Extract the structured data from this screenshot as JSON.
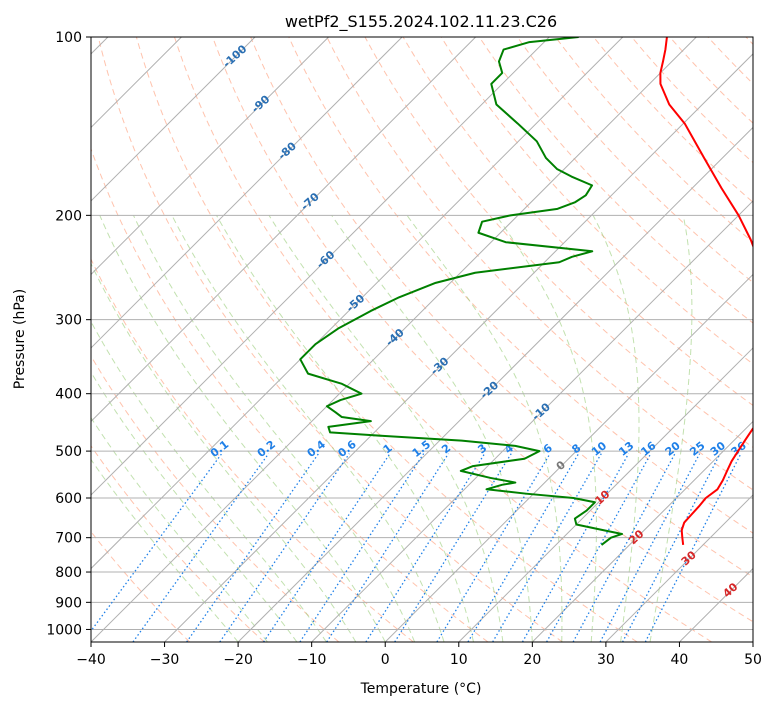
{
  "chart_data": {
    "type": "skew-t",
    "title": "wetPf2_S155.2024.102.11.23.C26",
    "xlabel": "Temperature (°C)",
    "ylabel": "Pressure (hPa)",
    "xlim": [
      -40,
      50
    ],
    "ylim": [
      1050,
      100
    ],
    "y_scale": "log",
    "x_ticks": [
      -40,
      -30,
      -20,
      -10,
      0,
      10,
      20,
      30,
      40,
      50
    ],
    "x_tick_labels": [
      "−40",
      "−30",
      "−20",
      "−10",
      "0",
      "10",
      "20",
      "30",
      "40",
      "50"
    ],
    "y_ticks": [
      100,
      200,
      300,
      400,
      500,
      600,
      700,
      800,
      900,
      1000
    ],
    "y_tick_labels": [
      "100",
      "200",
      "300",
      "400",
      "500",
      "600",
      "700",
      "800",
      "900",
      "1000"
    ],
    "grid": true,
    "series": [
      {
        "role": "temperature",
        "color": "#ff0000",
        "points": [
          {
            "p": 720,
            "t": 27.3
          },
          {
            "p": 700,
            "t": 26.2
          },
          {
            "p": 680,
            "t": 25.1
          },
          {
            "p": 660,
            "t": 24.4
          },
          {
            "p": 640,
            "t": 24.3
          },
          {
            "p": 620,
            "t": 24.2
          },
          {
            "p": 600,
            "t": 24.0
          },
          {
            "p": 580,
            "t": 24.4
          },
          {
            "p": 560,
            "t": 23.9
          },
          {
            "p": 540,
            "t": 23.2
          },
          {
            "p": 520,
            "t": 22.5
          },
          {
            "p": 500,
            "t": 22.0
          },
          {
            "p": 480,
            "t": 21.5
          },
          {
            "p": 460,
            "t": 21.0
          },
          {
            "p": 440,
            "t": 20.6
          },
          {
            "p": 420,
            "t": 20.3
          },
          {
            "p": 400,
            "t": 20.0
          },
          {
            "p": 380,
            "t": 19.2
          },
          {
            "p": 360,
            "t": 17.7
          },
          {
            "p": 340,
            "t": 15.3
          },
          {
            "p": 320,
            "t": 12.8
          },
          {
            "p": 300,
            "t": 10.0
          },
          {
            "p": 280,
            "t": 6.8
          },
          {
            "p": 260,
            "t": 3.0
          },
          {
            "p": 240,
            "t": -0.8
          },
          {
            "p": 220,
            "t": -5.0
          },
          {
            "p": 200,
            "t": -10.0
          },
          {
            "p": 180,
            "t": -16.0
          },
          {
            "p": 160,
            "t": -22.5
          },
          {
            "p": 140,
            "t": -29.8
          },
          {
            "p": 130,
            "t": -34.5
          },
          {
            "p": 120,
            "t": -38.5
          },
          {
            "p": 115,
            "t": -40.0
          },
          {
            "p": 110,
            "t": -41.2
          },
          {
            "p": 105,
            "t": -42.5
          },
          {
            "p": 100,
            "t": -44.0
          }
        ]
      },
      {
        "role": "dewpoint",
        "color": "#008000",
        "points": [
          {
            "p": 720,
            "t": 16.2
          },
          {
            "p": 700,
            "t": 16.5
          },
          {
            "p": 690,
            "t": 17.5
          },
          {
            "p": 680,
            "t": 14.5
          },
          {
            "p": 665,
            "t": 10.0
          },
          {
            "p": 650,
            "t": 9.0
          },
          {
            "p": 630,
            "t": 9.5
          },
          {
            "p": 610,
            "t": 9.5
          },
          {
            "p": 600,
            "t": 6.0
          },
          {
            "p": 590,
            "t": -1.0
          },
          {
            "p": 580,
            "t": -7.0
          },
          {
            "p": 570,
            "t": -5.5
          },
          {
            "p": 565,
            "t": -4.0
          },
          {
            "p": 555,
            "t": -8.0
          },
          {
            "p": 540,
            "t": -13.0
          },
          {
            "p": 530,
            "t": -12.0
          },
          {
            "p": 515,
            "t": -6.0
          },
          {
            "p": 500,
            "t": -5.0
          },
          {
            "p": 490,
            "t": -9.0
          },
          {
            "p": 480,
            "t": -17.0
          },
          {
            "p": 470,
            "t": -30.0
          },
          {
            "p": 465,
            "t": -36.0
          },
          {
            "p": 455,
            "t": -37.0
          },
          {
            "p": 445,
            "t": -32.0
          },
          {
            "p": 438,
            "t": -36.5
          },
          {
            "p": 430,
            "t": -38.0
          },
          {
            "p": 420,
            "t": -40.0
          },
          {
            "p": 410,
            "t": -39.0
          },
          {
            "p": 400,
            "t": -37.0
          },
          {
            "p": 385,
            "t": -41.0
          },
          {
            "p": 370,
            "t": -47.0
          },
          {
            "p": 350,
            "t": -50.0
          },
          {
            "p": 330,
            "t": -50.0
          },
          {
            "p": 310,
            "t": -49.0
          },
          {
            "p": 290,
            "t": -47.0
          },
          {
            "p": 275,
            "t": -45.0
          },
          {
            "p": 260,
            "t": -42.0
          },
          {
            "p": 250,
            "t": -38.0
          },
          {
            "p": 240,
            "t": -28.0
          },
          {
            "p": 235,
            "t": -27.0
          },
          {
            "p": 230,
            "t": -25.0
          },
          {
            "p": 222,
            "t": -38.0
          },
          {
            "p": 214,
            "t": -43.0
          },
          {
            "p": 205,
            "t": -44.0
          },
          {
            "p": 200,
            "t": -41.0
          },
          {
            "p": 195,
            "t": -35.5
          },
          {
            "p": 190,
            "t": -34.0
          },
          {
            "p": 185,
            "t": -33.5
          },
          {
            "p": 178,
            "t": -34.0
          },
          {
            "p": 172,
            "t": -38.0
          },
          {
            "p": 167,
            "t": -41.0
          },
          {
            "p": 160,
            "t": -44.0
          },
          {
            "p": 150,
            "t": -47.5
          },
          {
            "p": 140,
            "t": -52.5
          },
          {
            "p": 130,
            "t": -58.0
          },
          {
            "p": 120,
            "t": -61.5
          },
          {
            "p": 115,
            "t": -61.5
          },
          {
            "p": 110,
            "t": -63.5
          },
          {
            "p": 105,
            "t": -64.5
          },
          {
            "p": 102,
            "t": -62.0
          },
          {
            "p": 100,
            "t": -56.0
          }
        ]
      }
    ],
    "isotherm_labels": [
      "-100",
      "-90",
      "-80",
      "-70",
      "-60",
      "-50",
      "-40",
      "-30",
      "-20",
      "-10",
      "0",
      "10",
      "20",
      "30",
      "40"
    ],
    "mixing_ratio_labels": [
      "0.1",
      "0.2",
      "0.4",
      "0.6",
      "1",
      "1.5",
      "2",
      "3",
      "4",
      "6",
      "8",
      "10",
      "13",
      "16",
      "20",
      "25",
      "30",
      "36"
    ],
    "mixing_ratio_values": [
      0.1,
      0.2,
      0.4,
      0.6,
      1,
      1.5,
      2,
      3,
      4,
      6,
      8,
      10,
      13,
      16,
      20,
      25,
      30,
      36
    ],
    "colors": {
      "dry_adiabat": "#ff9b76",
      "moist_adiabat": "#9acd7a",
      "mixing_ratio": "#1f80e8",
      "isotherm_label_cold": "#2a6fb3",
      "isotherm_label_warm": "#d62728",
      "isotherm_label_zero": "#777777",
      "grid": "#b0b0b0"
    }
  }
}
